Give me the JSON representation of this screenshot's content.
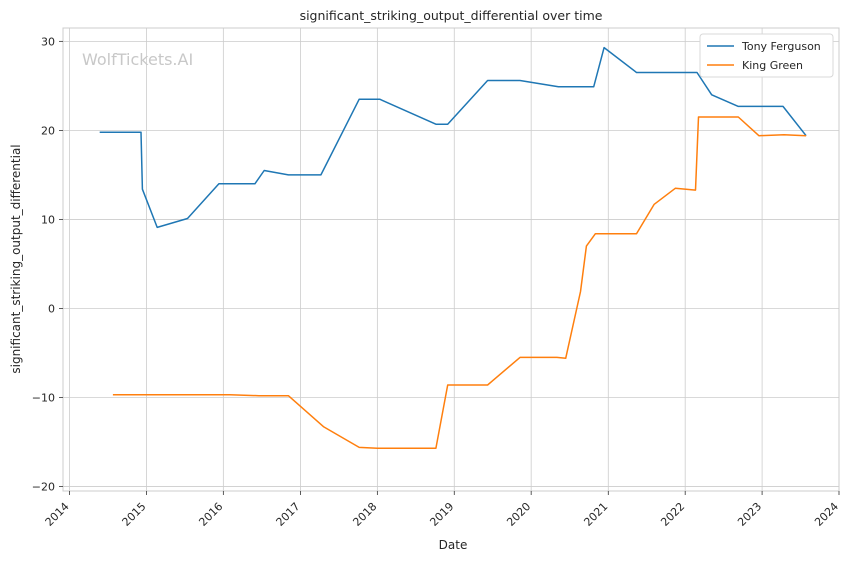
{
  "chart_data": {
    "type": "line",
    "title": "significant_striking_output_differential over time",
    "xlabel": "Date",
    "ylabel": "significant_striking_output_differential",
    "watermark": "WolfTickets.AI",
    "x_ticks": [
      "2014",
      "2015",
      "2016",
      "2017",
      "2018",
      "2019",
      "2020",
      "2021",
      "2022",
      "2023",
      "2024"
    ],
    "y_ticks": [
      -20,
      -10,
      0,
      10,
      20,
      30
    ],
    "xlim": [
      "2013-12-01",
      "2024-01-01"
    ],
    "ylim": [
      -20.5,
      31.5
    ],
    "grid": true,
    "legend_position": "top-right",
    "series": [
      {
        "name": "Tony Ferguson",
        "color": "#1f77b4",
        "points": [
          [
            "2014-05-24",
            19.8
          ],
          [
            "2014-12-06",
            19.8
          ],
          [
            "2014-12-13",
            13.4
          ],
          [
            "2015-02-21",
            9.1
          ],
          [
            "2015-07-15",
            10.1
          ],
          [
            "2015-12-11",
            14.0
          ],
          [
            "2016-05-30",
            14.0
          ],
          [
            "2016-07-13",
            15.5
          ],
          [
            "2016-11-05",
            15.0
          ],
          [
            "2017-04-08",
            15.0
          ],
          [
            "2017-10-07",
            23.5
          ],
          [
            "2018-01-12",
            23.5
          ],
          [
            "2018-10-06",
            20.7
          ],
          [
            "2018-12-01",
            20.7
          ],
          [
            "2019-06-08",
            25.6
          ],
          [
            "2019-11-09",
            25.6
          ],
          [
            "2020-05-09",
            24.9
          ],
          [
            "2020-10-24",
            24.9
          ],
          [
            "2020-12-12",
            29.3
          ],
          [
            "2021-05-15",
            26.5
          ],
          [
            "2021-08-15",
            26.5
          ],
          [
            "2021-11-15",
            26.5
          ],
          [
            "2022-02-26",
            26.5
          ],
          [
            "2022-05-07",
            24.0
          ],
          [
            "2022-09-10",
            22.7
          ],
          [
            "2023-04-10",
            22.7
          ],
          [
            "2023-07-29",
            19.4
          ]
        ]
      },
      {
        "name": "King Green",
        "color": "#ff7f0e",
        "points": [
          [
            "2014-07-26",
            -9.7
          ],
          [
            "2016-02-01",
            -9.7
          ],
          [
            "2016-06-18",
            -9.8
          ],
          [
            "2016-11-05",
            -9.8
          ],
          [
            "2017-04-22",
            -13.3
          ],
          [
            "2017-10-07",
            -15.6
          ],
          [
            "2018-01-01",
            -15.7
          ],
          [
            "2018-10-06",
            -15.7
          ],
          [
            "2018-12-01",
            -8.6
          ],
          [
            "2019-06-08",
            -8.6
          ],
          [
            "2019-11-09",
            -5.5
          ],
          [
            "2020-05-02",
            -5.5
          ],
          [
            "2020-06-13",
            -5.6
          ],
          [
            "2020-08-22",
            1.9
          ],
          [
            "2020-09-19",
            7.0
          ],
          [
            "2020-11-01",
            8.4
          ],
          [
            "2021-05-15",
            8.4
          ],
          [
            "2021-08-07",
            11.7
          ],
          [
            "2021-11-15",
            13.5
          ],
          [
            "2022-02-19",
            13.3
          ],
          [
            "2022-03-05",
            21.5
          ],
          [
            "2022-09-10",
            21.5
          ],
          [
            "2022-12-17",
            19.4
          ],
          [
            "2023-04-15",
            19.5
          ],
          [
            "2023-07-29",
            19.4
          ]
        ]
      }
    ]
  }
}
